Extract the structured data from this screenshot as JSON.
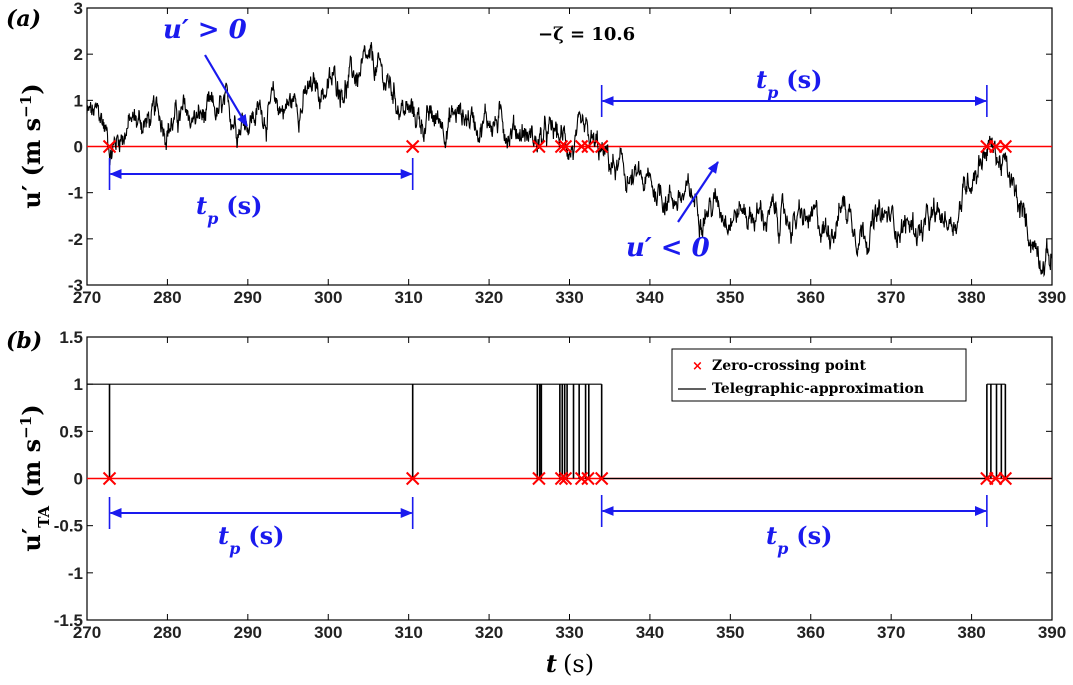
{
  "chart_data": [
    {
      "panel": "(a)",
      "type": "line",
      "ylabel": "u′ (m s⁻¹)",
      "xlim": [
        270,
        390
      ],
      "ylim": [
        -3,
        3
      ],
      "xticks": [
        270,
        280,
        290,
        300,
        310,
        320,
        330,
        340,
        350,
        360,
        370,
        380,
        390
      ],
      "yticks": [
        -3,
        -2,
        -1,
        0,
        1,
        2,
        3
      ],
      "annotations": {
        "zeta": "−ζ = 10.6",
        "positive": "u′ > 0",
        "negative": "u′ < 0",
        "tp_left": "t",
        "tp_right": "t",
        "tp_sub": "p",
        "tp_unit": "(s)"
      },
      "signal_anchors": {
        "x": [
          270,
          272,
          273,
          275,
          280,
          285,
          290,
          295,
          300,
          303,
          306,
          308,
          310,
          313,
          316,
          320,
          324,
          326,
          328,
          329.5,
          331,
          333,
          335,
          338,
          342,
          346,
          350,
          354,
          358,
          362,
          364,
          366,
          370,
          374,
          378,
          380,
          382,
          384,
          386,
          388,
          390
        ],
        "y": [
          0.7,
          0.5,
          0.0,
          0.5,
          0.6,
          0.6,
          0.7,
          0.9,
          1.3,
          1.5,
          1.6,
          1.2,
          0.7,
          0.5,
          0.7,
          0.6,
          0.4,
          0.1,
          0.2,
          0.1,
          0.0,
          -0.1,
          -0.4,
          -0.8,
          -1.0,
          -1.2,
          -1.3,
          -1.5,
          -1.6,
          -1.8,
          -1.2,
          -1.7,
          -1.6,
          -1.8,
          -1.5,
          -0.5,
          0.1,
          -0.4,
          -1.5,
          -2.1,
          -2.4
        ]
      },
      "zero_crossings": [
        272.8,
        310.5,
        326.2,
        329.0,
        329.5,
        331.5,
        332.3,
        334.0,
        381.9,
        383.0,
        384.2
      ],
      "series": [
        {
          "name": "",
          "color": "#000000",
          "role": "u′ signal"
        },
        {
          "name": "",
          "color": "#ff0000",
          "role": "zero line"
        }
      ]
    },
    {
      "panel": "(b)",
      "type": "line",
      "ylabel": "u′TA (m s⁻¹)",
      "xlabel": "t (s)",
      "xlim": [
        270,
        390
      ],
      "ylim": [
        -1.5,
        1.5
      ],
      "xticks": [
        270,
        280,
        290,
        300,
        310,
        320,
        330,
        340,
        350,
        360,
        370,
        380,
        390
      ],
      "yticks": [
        -1.5,
        -1,
        -0.5,
        0,
        0.5,
        1,
        1.5
      ],
      "telegraphic_steps": [
        {
          "x0": 270,
          "x1": 272.8,
          "y": 1
        },
        {
          "x0": 272.8,
          "x1": 326.2,
          "y": 1
        },
        {
          "x0": 326.2,
          "x1": 334.0,
          "y": 1
        },
        {
          "x0": 334.0,
          "x1": 381.9,
          "y": 0
        },
        {
          "x0": 381.9,
          "x1": 384.2,
          "y": 1
        },
        {
          "x0": 384.2,
          "x1": 390,
          "y": 0
        }
      ],
      "spikes": [
        272.8,
        310.5,
        326.0,
        326.3,
        326.5,
        328.8,
        329.1,
        329.4,
        329.7,
        330.5,
        331.2,
        332.0,
        332.4,
        334.0,
        381.9,
        382.4,
        383.1,
        383.7,
        384.2
      ],
      "zero_crossings": [
        272.8,
        310.5,
        326.2,
        329.0,
        329.5,
        331.5,
        332.3,
        334.0,
        381.9,
        383.0,
        384.2
      ],
      "legend": [
        "Zero-crossing point",
        "Telegraphic-approximation"
      ],
      "legend_position": "top-right",
      "annotations": {
        "tp_left": "t",
        "tp_right": "t",
        "tp_sub": "p",
        "tp_unit": "(s)"
      }
    }
  ],
  "labels": {
    "panel_a": "(a)",
    "panel_b": "(b)",
    "xlabel_t": "t",
    "xlabel_unit": "(s)",
    "ylabel_a_main": "u′ (m s",
    "ylabel_b_main": "u′",
    "ylabel_b_sub": "TA",
    "ylabel_b_unit": " (m s",
    "exp": "−1",
    "paren": ")"
  },
  "colors": {
    "signal": "#000000",
    "zero_line": "#ff0000",
    "annotation": "#1a1aee",
    "crossing": "#ff0000"
  }
}
